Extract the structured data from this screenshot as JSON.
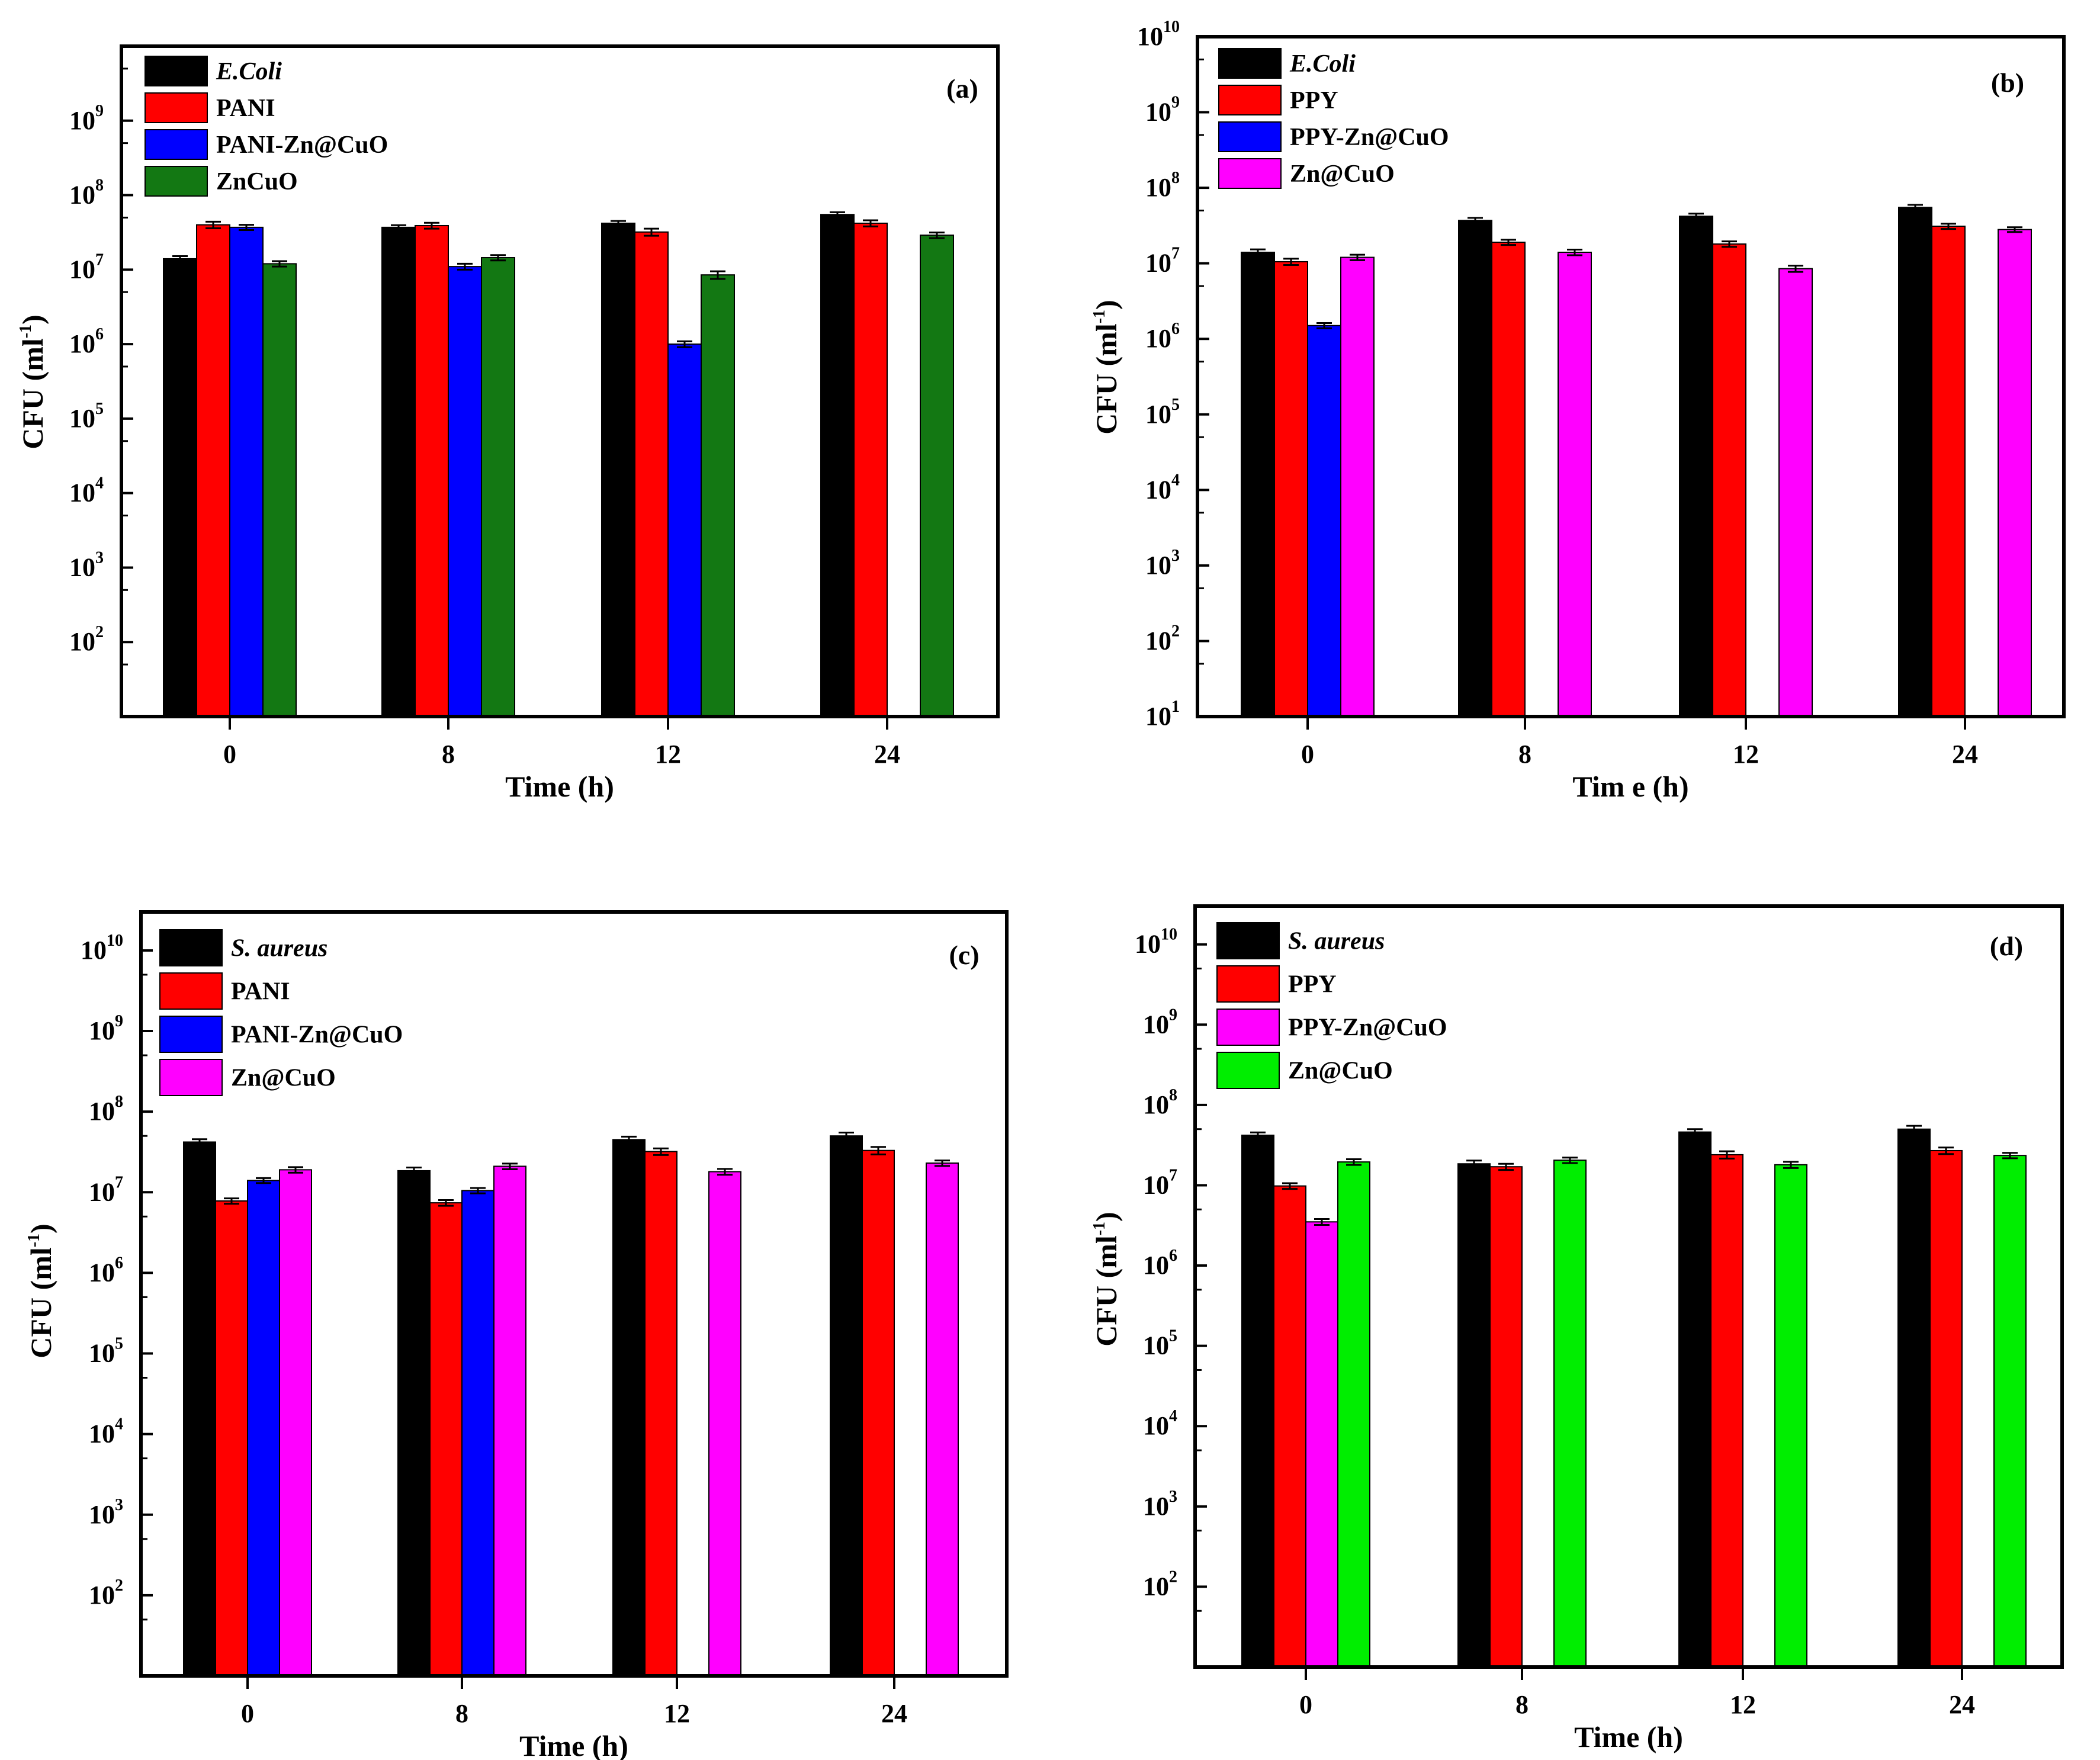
{
  "chart_data": [
    {
      "type": "bar",
      "panel_label": "(a)",
      "xlabel": "Time (h)",
      "ylabel": "CFU (ml",
      "ylabel_exp": "-1",
      "ylabel_close": ")",
      "yscale": "log",
      "ylim": [
        10,
        10000000000
      ],
      "yticks": [
        100,
        1000,
        10000,
        100000,
        1000000,
        10000000,
        100000000,
        1000000000
      ],
      "ytick_base": "10",
      "ytick_exps": [
        "2",
        "3",
        "4",
        "5",
        "6",
        "7",
        "8",
        "9"
      ],
      "categories": [
        "0",
        "8",
        "12",
        "24"
      ],
      "legend_location": "top-left",
      "series": [
        {
          "name": "E.Coli",
          "italic": true,
          "color": "#000000",
          "values": [
            14000000,
            37000000,
            42000000,
            55000000
          ],
          "errors": [
            1200000,
            2500000,
            3000000,
            4000000
          ]
        },
        {
          "name": "PANI",
          "italic": false,
          "color": "#ff0000",
          "values": [
            40000000,
            39000000,
            32000000,
            42000000
          ],
          "errors": [
            4000000,
            3500000,
            3500000,
            4000000
          ]
        },
        {
          "name": "PANI-Zn@CuO",
          "italic": false,
          "color": "#0000ff",
          "values": [
            37000000,
            11000000,
            1000000,
            null
          ],
          "errors": [
            3000000,
            1000000,
            90000,
            null
          ]
        },
        {
          "name": "ZnCuO",
          "italic": false,
          "color": "#137813",
          "values": [
            12000000,
            14500000,
            8500000,
            29000000
          ],
          "errors": [
            1000000,
            1200000,
            1000000,
            2500000
          ]
        }
      ]
    },
    {
      "type": "bar",
      "panel_label": "(b)",
      "xlabel": "Tim e (h)",
      "ylabel": "CFU (ml",
      "ylabel_exp": "-1",
      "ylabel_close": ")",
      "yscale": "log",
      "ylim": [
        10,
        10000000000
      ],
      "yticks": [
        10,
        100,
        1000,
        10000,
        100000,
        1000000,
        10000000,
        100000000,
        1000000000,
        10000000000
      ],
      "ytick_base": "10",
      "ytick_exps": [
        "1",
        "2",
        "3",
        "4",
        "5",
        "6",
        "7",
        "8",
        "9",
        "10"
      ],
      "categories": [
        "0",
        "8",
        "12",
        "24"
      ],
      "legend_location": "top-left",
      "series": [
        {
          "name": "E.Coli",
          "italic": true,
          "color": "#000000",
          "values": [
            14000000,
            37000000,
            42000000,
            55000000
          ],
          "errors": [
            1300000,
            3000000,
            3500000,
            4500000
          ]
        },
        {
          "name": "PPY",
          "italic": false,
          "color": "#ff0000",
          "values": [
            10500000,
            19000000,
            18000000,
            31000000
          ],
          "errors": [
            1000000,
            1500000,
            1500000,
            2500000
          ]
        },
        {
          "name": "PPY-Zn@CuO",
          "italic": false,
          "color": "#0000ff",
          "values": [
            1500000,
            null,
            null,
            null
          ],
          "errors": [
            120000,
            null,
            null,
            null
          ]
        },
        {
          "name": "Zn@CuO",
          "italic": false,
          "color": "#ff00ff",
          "values": [
            12000000,
            14000000,
            8500000,
            28000000
          ],
          "errors": [
            1000000,
            1200000,
            800000,
            2000000
          ]
        }
      ]
    },
    {
      "type": "bar",
      "panel_label": "(c)",
      "xlabel": "Time (h)",
      "ylabel": "CFU (ml",
      "ylabel_exp": "-1",
      "ylabel_close": ")",
      "yscale": "log",
      "ylim": [
        10,
        30000000000
      ],
      "yticks": [
        100,
        1000,
        10000,
        100000,
        1000000,
        10000000,
        100000000,
        1000000000,
        10000000000
      ],
      "ytick_base": "10",
      "ytick_exps": [
        "2",
        "3",
        "4",
        "5",
        "6",
        "7",
        "8",
        "9",
        "10"
      ],
      "categories": [
        "0",
        "8",
        "12",
        "24"
      ],
      "legend_location": "top-left",
      "series": [
        {
          "name": "S. aureus",
          "italic": true,
          "color": "#000000",
          "values": [
            42000000,
            18500000,
            45000000,
            50000000
          ],
          "errors": [
            3500000,
            1800000,
            4000000,
            5000000
          ]
        },
        {
          "name": "PANI",
          "italic": false,
          "color": "#ff0000",
          "values": [
            7800000,
            7400000,
            32000000,
            33000000
          ],
          "errors": [
            600000,
            600000,
            3000000,
            3500000
          ]
        },
        {
          "name": "PANI-Zn@CuO",
          "italic": false,
          "color": "#0000ff",
          "values": [
            14000000,
            10500000,
            null,
            null
          ],
          "errors": [
            1000000,
            800000,
            null,
            null
          ]
        },
        {
          "name": "Zn@CuO",
          "italic": false,
          "color": "#ff00ff",
          "values": [
            19000000,
            21000000,
            18000000,
            23000000
          ],
          "errors": [
            1500000,
            1700000,
            1500000,
            1800000
          ]
        }
      ]
    },
    {
      "type": "bar",
      "panel_label": "(d)",
      "xlabel": "Time (h)",
      "ylabel": "CFU (ml",
      "ylabel_exp": "-1",
      "ylabel_close": ")",
      "yscale": "log",
      "ylim": [
        10,
        30000000000
      ],
      "yticks": [
        100,
        1000,
        10000,
        100000,
        1000000,
        10000000,
        100000000,
        1000000000,
        10000000000
      ],
      "ytick_base": "10",
      "ytick_exps": [
        "2",
        "3",
        "4",
        "5",
        "6",
        "7",
        "8",
        "9",
        "10"
      ],
      "categories": [
        "0",
        "8",
        "12",
        "24"
      ],
      "legend_location": "top-left",
      "series": [
        {
          "name": "S. aureus",
          "italic": true,
          "color": "#000000",
          "values": [
            42000000,
            18500000,
            46000000,
            50000000
          ],
          "errors": [
            3500000,
            1800000,
            4000000,
            5000000
          ]
        },
        {
          "name": "PPY",
          "italic": false,
          "color": "#ff0000",
          "values": [
            9800000,
            17000000,
            24000000,
            27000000
          ],
          "errors": [
            800000,
            1500000,
            2500000,
            2500000
          ]
        },
        {
          "name": "PPY-Zn@CuO",
          "italic": false,
          "color": "#ff00ff",
          "values": [
            3500000,
            null,
            null,
            null
          ],
          "errors": [
            300000,
            null,
            null,
            null
          ]
        },
        {
          "name": "Zn@CuO",
          "italic": false,
          "color": "#00ee00",
          "values": [
            19500000,
            20500000,
            18000000,
            23500000
          ],
          "errors": [
            1600000,
            1600000,
            1600000,
            1800000
          ]
        }
      ]
    }
  ]
}
